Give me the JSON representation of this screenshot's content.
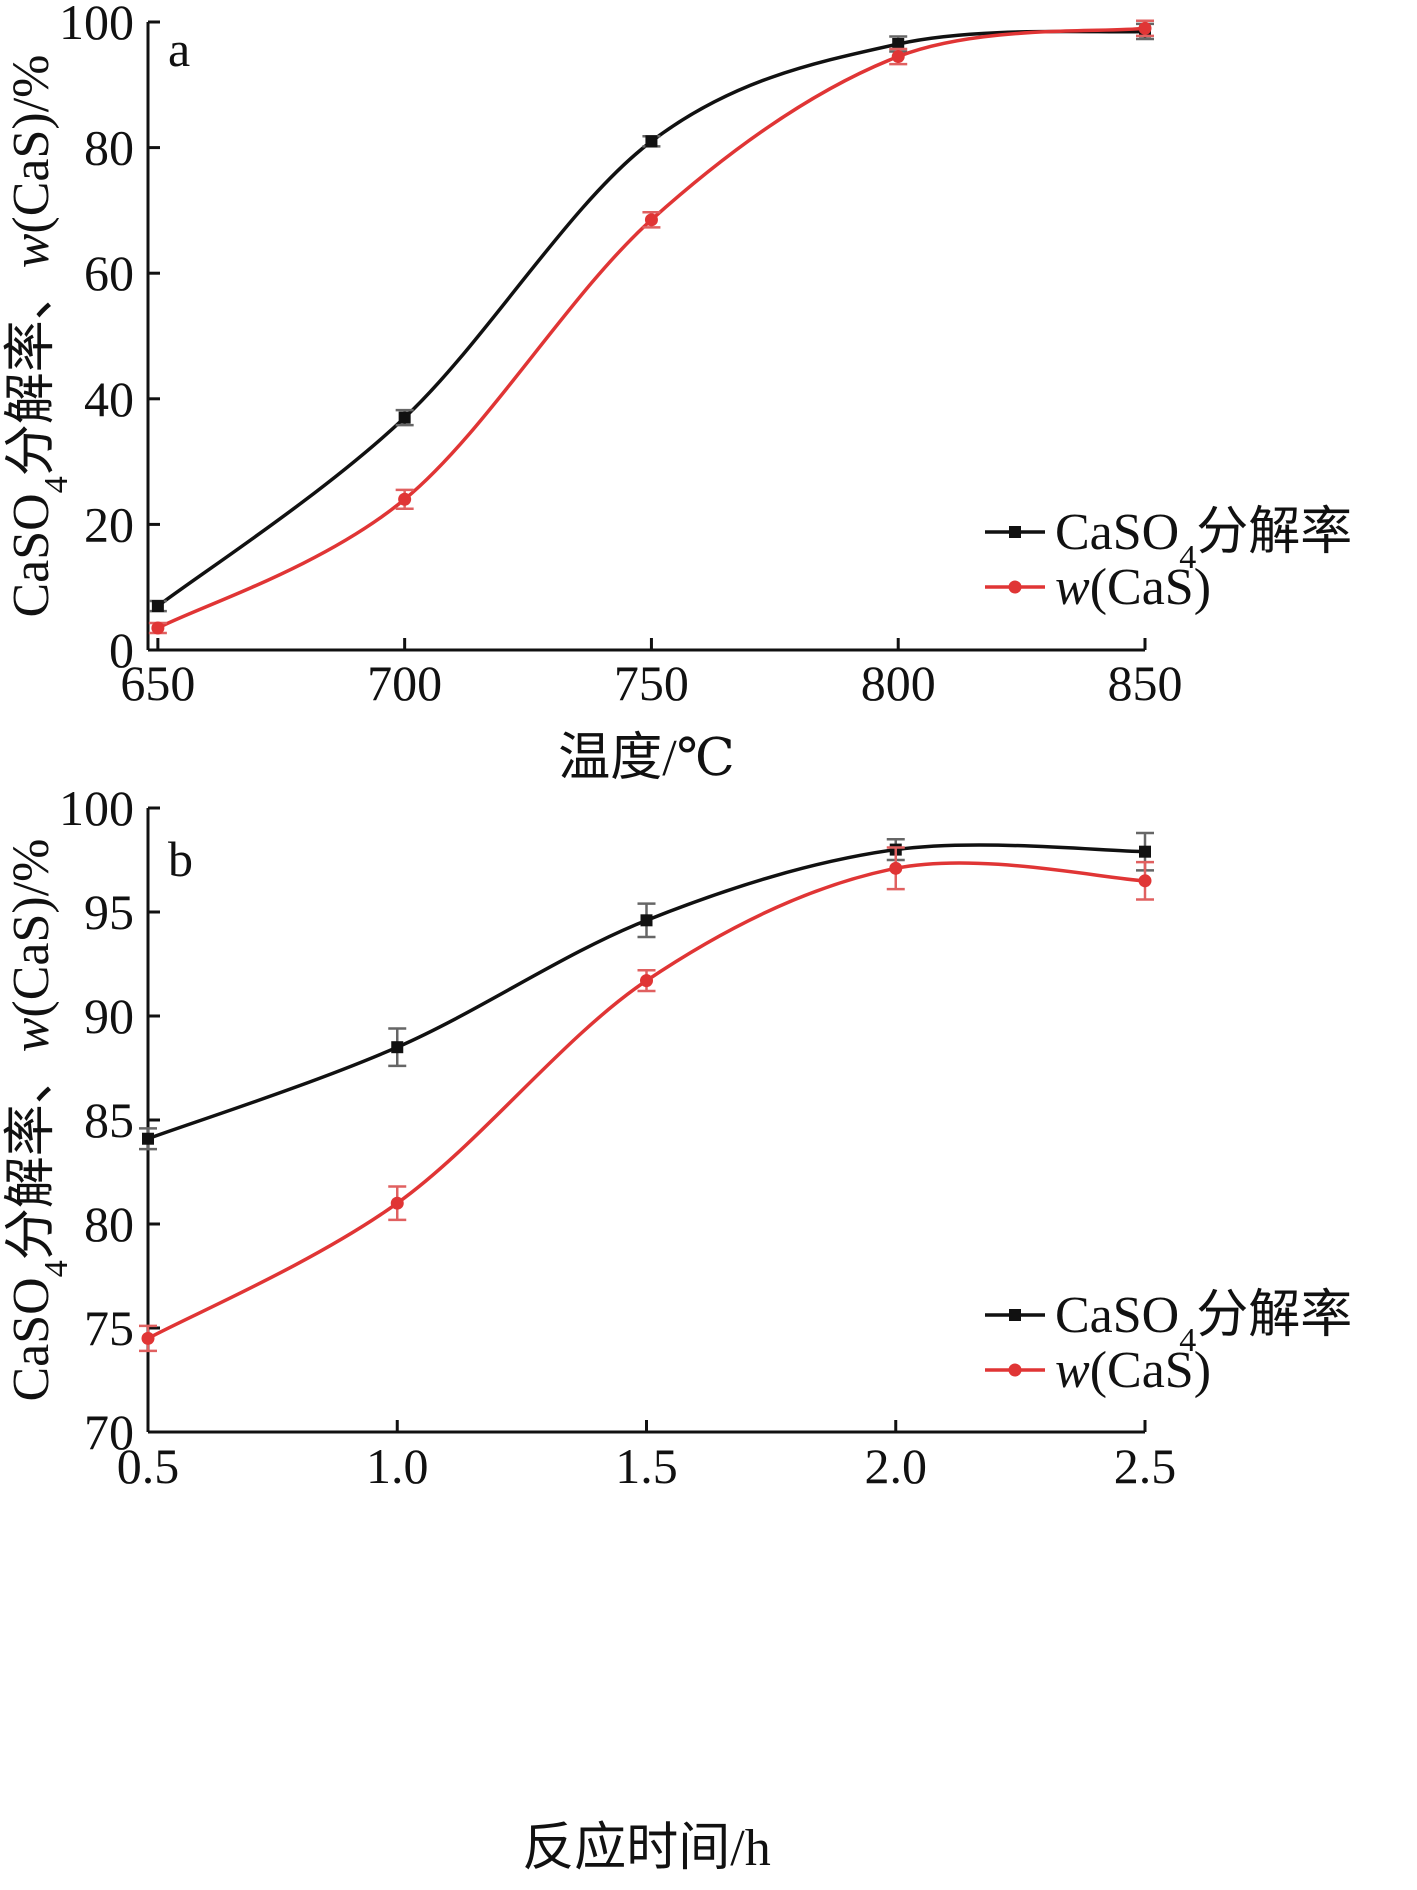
{
  "chart_data": [
    {
      "type": "line",
      "panel_label": "a",
      "xlabel": "温度/℃",
      "ylabel": "CaSO4分解率、w(CaS)/%",
      "ylabel_parts": {
        "pre": "CaSO",
        "sub": "4",
        "mid": "分解率、",
        "ital": "w",
        "post": "(CaS)/%"
      },
      "x": [
        650,
        700,
        750,
        800,
        850
      ],
      "xticks": [
        "650",
        "700",
        "750",
        "800",
        "850"
      ],
      "xlim": [
        648,
        850
      ],
      "yticks": [
        "0",
        "20",
        "40",
        "60",
        "80",
        "100"
      ],
      "ytick_values": [
        0,
        20,
        40,
        60,
        80,
        100
      ],
      "ylim": [
        0,
        100
      ],
      "grid": false,
      "legend_position": "bottom-right",
      "series": [
        {
          "name": "CaSO4分解率",
          "legend": {
            "pre": "CaSO",
            "sub": "4",
            "post": "分解率",
            "ital": ""
          },
          "color": "#111111",
          "marker": "square",
          "values": [
            7,
            37,
            81,
            96.5,
            98.5
          ],
          "errors": [
            0.8,
            1.2,
            0.8,
            1.2,
            1.2
          ]
        },
        {
          "name": "w(CaS)",
          "legend": {
            "pre": "",
            "sub": "",
            "post": "(CaS)",
            "ital": "w"
          },
          "color": "#e03535",
          "marker": "circle",
          "values": [
            3.5,
            24,
            68.5,
            94.5,
            99
          ],
          "errors": [
            0.8,
            1.5,
            1.2,
            1.2,
            1.2
          ]
        }
      ]
    },
    {
      "type": "line",
      "panel_label": "b",
      "xlabel": "反应时间/h",
      "ylabel": "CaSO4分解率、w(CaS)/%",
      "ylabel_parts": {
        "pre": "CaSO",
        "sub": "4",
        "mid": "分解率、",
        "ital": "w",
        "post": "(CaS)/%"
      },
      "x": [
        0.5,
        1.0,
        1.5,
        2.0,
        2.5
      ],
      "xticks": [
        "0.5",
        "1.0",
        "1.5",
        "2.0",
        "2.5"
      ],
      "xlim": [
        0.5,
        2.5
      ],
      "yticks": [
        "70",
        "75",
        "80",
        "85",
        "90",
        "95",
        "100"
      ],
      "ytick_values": [
        70,
        75,
        80,
        85,
        90,
        95,
        100
      ],
      "ylim": [
        70,
        100
      ],
      "grid": false,
      "legend_position": "bottom-right",
      "series": [
        {
          "name": "CaSO4分解率",
          "legend": {
            "pre": "CaSO",
            "sub": "4",
            "post": "分解率",
            "ital": ""
          },
          "color": "#111111",
          "marker": "square",
          "values": [
            84.1,
            88.5,
            94.6,
            98.0,
            97.9
          ],
          "errors": [
            0.5,
            0.9,
            0.8,
            0.5,
            0.9
          ]
        },
        {
          "name": "w(CaS)",
          "legend": {
            "pre": "",
            "sub": "",
            "post": "(CaS)",
            "ital": "w"
          },
          "color": "#e03535",
          "marker": "circle",
          "values": [
            74.5,
            81.0,
            91.7,
            97.1,
            96.5
          ],
          "errors": [
            0.6,
            0.8,
            0.5,
            1.0,
            0.9
          ]
        }
      ]
    }
  ]
}
